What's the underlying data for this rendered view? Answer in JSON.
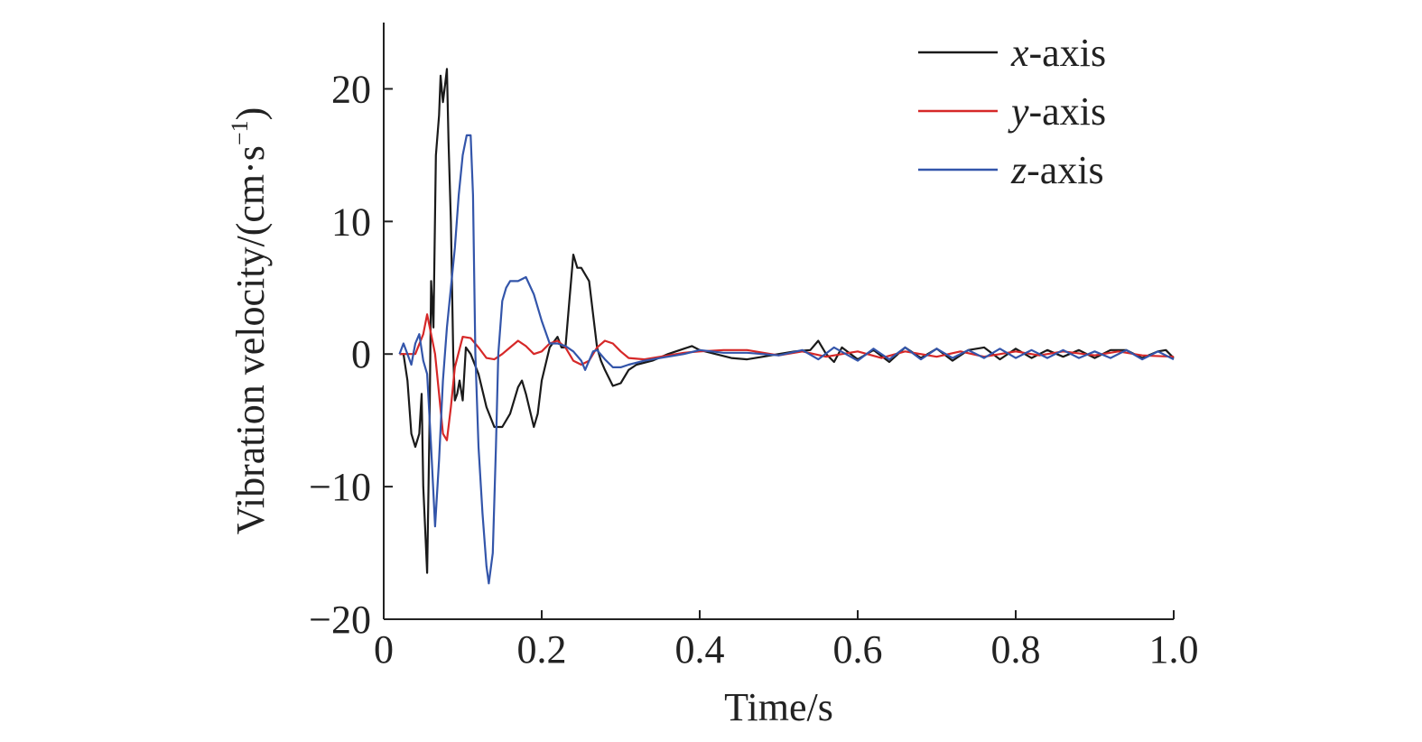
{
  "chart_data": {
    "type": "line",
    "xlabel": "Time/s",
    "ylabel_main": "Vibration velocity/(cm·s",
    "ylabel_sup": "−1",
    "ylabel_close": ")",
    "xlim": [
      0,
      1.0
    ],
    "ylim": [
      -20,
      25
    ],
    "xticks": [
      0,
      0.2,
      0.4,
      0.6,
      0.8,
      1.0
    ],
    "xtick_labels": [
      "0",
      "0.2",
      "0.4",
      "0.6",
      "0.8",
      "1.0"
    ],
    "yticks": [
      -20,
      -10,
      0,
      10,
      20
    ],
    "ytick_labels": [
      "−20",
      "−10",
      "0",
      "10",
      "20"
    ],
    "grid": false,
    "legend_position": "top-right",
    "series": [
      {
        "name": "x-axis",
        "legend_italic": "x",
        "legend_rest": "-axis",
        "color": "#1a1a1a",
        "points": [
          [
            0.02,
            0
          ],
          [
            0.025,
            0
          ],
          [
            0.03,
            -2
          ],
          [
            0.035,
            -6
          ],
          [
            0.04,
            -7
          ],
          [
            0.045,
            -6
          ],
          [
            0.048,
            -3
          ],
          [
            0.05,
            -10
          ],
          [
            0.055,
            -16.5
          ],
          [
            0.058,
            -5
          ],
          [
            0.06,
            5.5
          ],
          [
            0.063,
            2
          ],
          [
            0.066,
            15
          ],
          [
            0.07,
            18
          ],
          [
            0.072,
            21
          ],
          [
            0.075,
            19
          ],
          [
            0.078,
            20.5
          ],
          [
            0.08,
            21.5
          ],
          [
            0.082,
            16
          ],
          [
            0.085,
            10
          ],
          [
            0.088,
            0
          ],
          [
            0.09,
            -3.5
          ],
          [
            0.093,
            -3
          ],
          [
            0.096,
            -2
          ],
          [
            0.1,
            -3.5
          ],
          [
            0.104,
            0.5
          ],
          [
            0.11,
            0
          ],
          [
            0.12,
            -1.5
          ],
          [
            0.13,
            -4
          ],
          [
            0.14,
            -5.5
          ],
          [
            0.15,
            -5.5
          ],
          [
            0.16,
            -4.5
          ],
          [
            0.17,
            -2.5
          ],
          [
            0.175,
            -2
          ],
          [
            0.18,
            -3
          ],
          [
            0.19,
            -5.5
          ],
          [
            0.195,
            -4.5
          ],
          [
            0.2,
            -2
          ],
          [
            0.21,
            0.5
          ],
          [
            0.22,
            1.3
          ],
          [
            0.225,
            0.5
          ],
          [
            0.23,
            0.5
          ],
          [
            0.235,
            4
          ],
          [
            0.24,
            7.5
          ],
          [
            0.245,
            6.5
          ],
          [
            0.25,
            6.5
          ],
          [
            0.26,
            5.5
          ],
          [
            0.265,
            3
          ],
          [
            0.27,
            0.5
          ],
          [
            0.275,
            -0.5
          ],
          [
            0.28,
            -1.2
          ],
          [
            0.29,
            -2.4
          ],
          [
            0.3,
            -2.2
          ],
          [
            0.31,
            -1.2
          ],
          [
            0.32,
            -0.8
          ],
          [
            0.34,
            -0.5
          ],
          [
            0.36,
            0
          ],
          [
            0.38,
            0.4
          ],
          [
            0.39,
            0.6
          ],
          [
            0.4,
            0.3
          ],
          [
            0.42,
            0
          ],
          [
            0.44,
            -0.3
          ],
          [
            0.46,
            -0.4
          ],
          [
            0.48,
            -0.2
          ],
          [
            0.5,
            0
          ],
          [
            0.52,
            0.2
          ],
          [
            0.54,
            0.3
          ],
          [
            0.55,
            1
          ],
          [
            0.56,
            0
          ],
          [
            0.57,
            -0.6
          ],
          [
            0.58,
            0.5
          ],
          [
            0.6,
            -0.4
          ],
          [
            0.62,
            0.3
          ],
          [
            0.64,
            -0.6
          ],
          [
            0.66,
            0.5
          ],
          [
            0.68,
            -0.3
          ],
          [
            0.7,
            0.4
          ],
          [
            0.72,
            -0.5
          ],
          [
            0.74,
            0.3
          ],
          [
            0.76,
            0.5
          ],
          [
            0.78,
            -0.4
          ],
          [
            0.8,
            0.4
          ],
          [
            0.82,
            -0.3
          ],
          [
            0.84,
            0.3
          ],
          [
            0.86,
            -0.2
          ],
          [
            0.88,
            0.3
          ],
          [
            0.9,
            -0.3
          ],
          [
            0.92,
            0.3
          ],
          [
            0.94,
            0.3
          ],
          [
            0.96,
            -0.3
          ],
          [
            0.98,
            0.2
          ],
          [
            0.99,
            0.3
          ],
          [
            1.0,
            -0.3
          ]
        ]
      },
      {
        "name": "y-axis",
        "legend_italic": "y",
        "legend_rest": "-axis",
        "color": "#d62828",
        "points": [
          [
            0.02,
            0
          ],
          [
            0.04,
            0
          ],
          [
            0.05,
            1.5
          ],
          [
            0.055,
            3
          ],
          [
            0.06,
            1.5
          ],
          [
            0.065,
            0
          ],
          [
            0.07,
            -3
          ],
          [
            0.075,
            -6
          ],
          [
            0.08,
            -6.5
          ],
          [
            0.085,
            -4
          ],
          [
            0.09,
            -1
          ],
          [
            0.1,
            1.3
          ],
          [
            0.11,
            1.2
          ],
          [
            0.12,
            0.5
          ],
          [
            0.13,
            -0.3
          ],
          [
            0.14,
            -0.4
          ],
          [
            0.15,
            0
          ],
          [
            0.16,
            0.5
          ],
          [
            0.17,
            1
          ],
          [
            0.18,
            0.6
          ],
          [
            0.19,
            0
          ],
          [
            0.2,
            0.2
          ],
          [
            0.21,
            0.8
          ],
          [
            0.22,
            1
          ],
          [
            0.23,
            0.5
          ],
          [
            0.24,
            -0.5
          ],
          [
            0.25,
            -0.8
          ],
          [
            0.26,
            -0.5
          ],
          [
            0.27,
            0.5
          ],
          [
            0.28,
            1
          ],
          [
            0.29,
            0.8
          ],
          [
            0.3,
            0.2
          ],
          [
            0.31,
            -0.3
          ],
          [
            0.33,
            -0.4
          ],
          [
            0.35,
            -0.2
          ],
          [
            0.38,
            0.1
          ],
          [
            0.4,
            0.2
          ],
          [
            0.43,
            0.3
          ],
          [
            0.46,
            0.3
          ],
          [
            0.5,
            -0.1
          ],
          [
            0.53,
            0.2
          ],
          [
            0.56,
            -0.2
          ],
          [
            0.6,
            0.2
          ],
          [
            0.63,
            -0.3
          ],
          [
            0.66,
            0.2
          ],
          [
            0.7,
            -0.2
          ],
          [
            0.73,
            0.2
          ],
          [
            0.76,
            -0.2
          ],
          [
            0.8,
            0.2
          ],
          [
            0.83,
            -0.1
          ],
          [
            0.86,
            0.2
          ],
          [
            0.9,
            -0.1
          ],
          [
            0.93,
            0.2
          ],
          [
            0.96,
            -0.1
          ],
          [
            1.0,
            -0.2
          ]
        ]
      },
      {
        "name": "z-axis",
        "legend_italic": "z",
        "legend_rest": "-axis",
        "color": "#3355aa",
        "points": [
          [
            0.02,
            0
          ],
          [
            0.025,
            0.8
          ],
          [
            0.03,
            0
          ],
          [
            0.035,
            -0.8
          ],
          [
            0.04,
            0.8
          ],
          [
            0.045,
            1.5
          ],
          [
            0.05,
            -0.5
          ],
          [
            0.055,
            -1.5
          ],
          [
            0.06,
            -7
          ],
          [
            0.065,
            -13
          ],
          [
            0.07,
            -8
          ],
          [
            0.075,
            -2
          ],
          [
            0.08,
            2
          ],
          [
            0.085,
            5
          ],
          [
            0.09,
            8
          ],
          [
            0.095,
            12
          ],
          [
            0.1,
            15
          ],
          [
            0.105,
            16.5
          ],
          [
            0.11,
            16.5
          ],
          [
            0.113,
            12
          ],
          [
            0.116,
            0
          ],
          [
            0.12,
            -7
          ],
          [
            0.125,
            -12
          ],
          [
            0.13,
            -16
          ],
          [
            0.133,
            -17.3
          ],
          [
            0.138,
            -15
          ],
          [
            0.142,
            -7
          ],
          [
            0.145,
            0
          ],
          [
            0.15,
            4
          ],
          [
            0.155,
            5
          ],
          [
            0.16,
            5.5
          ],
          [
            0.17,
            5.5
          ],
          [
            0.18,
            5.8
          ],
          [
            0.19,
            4.5
          ],
          [
            0.2,
            2.5
          ],
          [
            0.21,
            0.8
          ],
          [
            0.22,
            0.8
          ],
          [
            0.23,
            0.6
          ],
          [
            0.24,
            0.2
          ],
          [
            0.25,
            -0.5
          ],
          [
            0.255,
            -1.2
          ],
          [
            0.26,
            -0.5
          ],
          [
            0.265,
            0.2
          ],
          [
            0.27,
            0.3
          ],
          [
            0.28,
            -0.4
          ],
          [
            0.29,
            -1
          ],
          [
            0.3,
            -1
          ],
          [
            0.31,
            -0.8
          ],
          [
            0.33,
            -0.5
          ],
          [
            0.35,
            -0.3
          ],
          [
            0.38,
            0
          ],
          [
            0.4,
            0.3
          ],
          [
            0.43,
            0.1
          ],
          [
            0.46,
            0.1
          ],
          [
            0.5,
            -0.1
          ],
          [
            0.53,
            0.3
          ],
          [
            0.55,
            -0.4
          ],
          [
            0.57,
            0.5
          ],
          [
            0.6,
            -0.5
          ],
          [
            0.62,
            0.4
          ],
          [
            0.64,
            -0.4
          ],
          [
            0.66,
            0.5
          ],
          [
            0.68,
            -0.4
          ],
          [
            0.7,
            0.4
          ],
          [
            0.72,
            -0.3
          ],
          [
            0.74,
            0.3
          ],
          [
            0.76,
            -0.3
          ],
          [
            0.78,
            0.4
          ],
          [
            0.8,
            -0.3
          ],
          [
            0.82,
            0.3
          ],
          [
            0.84,
            -0.3
          ],
          [
            0.86,
            0.3
          ],
          [
            0.88,
            -0.3
          ],
          [
            0.9,
            0.2
          ],
          [
            0.92,
            -0.3
          ],
          [
            0.94,
            0.3
          ],
          [
            0.96,
            -0.4
          ],
          [
            0.98,
            0.2
          ],
          [
            1.0,
            -0.4
          ]
        ]
      }
    ]
  }
}
